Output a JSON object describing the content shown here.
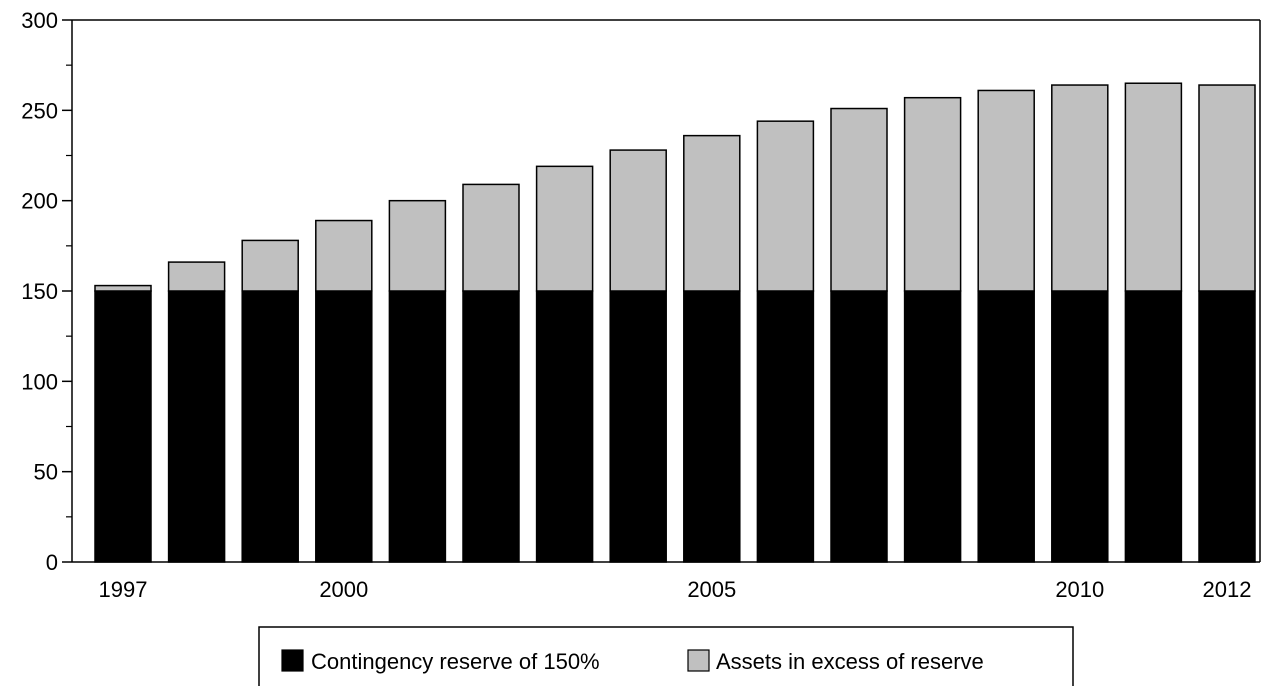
{
  "chart_data": {
    "type": "bar",
    "stacked": true,
    "title": "",
    "xlabel": "",
    "ylabel": "",
    "ylim": [
      0,
      300
    ],
    "yticks": [
      0,
      50,
      100,
      150,
      200,
      250,
      300
    ],
    "categories": [
      "1997",
      "1998",
      "1999",
      "2000",
      "2001",
      "2002",
      "2003",
      "2004",
      "2005",
      "2006",
      "2007",
      "2008",
      "2009",
      "2010",
      "2011",
      "2012"
    ],
    "xtick_labels": [
      {
        "category": "1997",
        "label": "1997"
      },
      {
        "category": "2000",
        "label": "2000"
      },
      {
        "category": "2005",
        "label": "2005"
      },
      {
        "category": "2010",
        "label": "2010"
      },
      {
        "category": "2012",
        "label": "2012"
      }
    ],
    "series": [
      {
        "name": "Contingency reserve of 150%",
        "color": "#000000",
        "values": [
          150,
          150,
          150,
          150,
          150,
          150,
          150,
          150,
          150,
          150,
          150,
          150,
          150,
          150,
          150,
          150
        ]
      },
      {
        "name": "Assets in excess of reserve",
        "color": "#c0c0c0",
        "values": [
          3,
          16,
          28,
          39,
          50,
          59,
          69,
          78,
          86,
          94,
          101,
          107,
          111,
          114,
          115,
          114
        ]
      }
    ],
    "grid": false,
    "legend_position": "bottom"
  }
}
